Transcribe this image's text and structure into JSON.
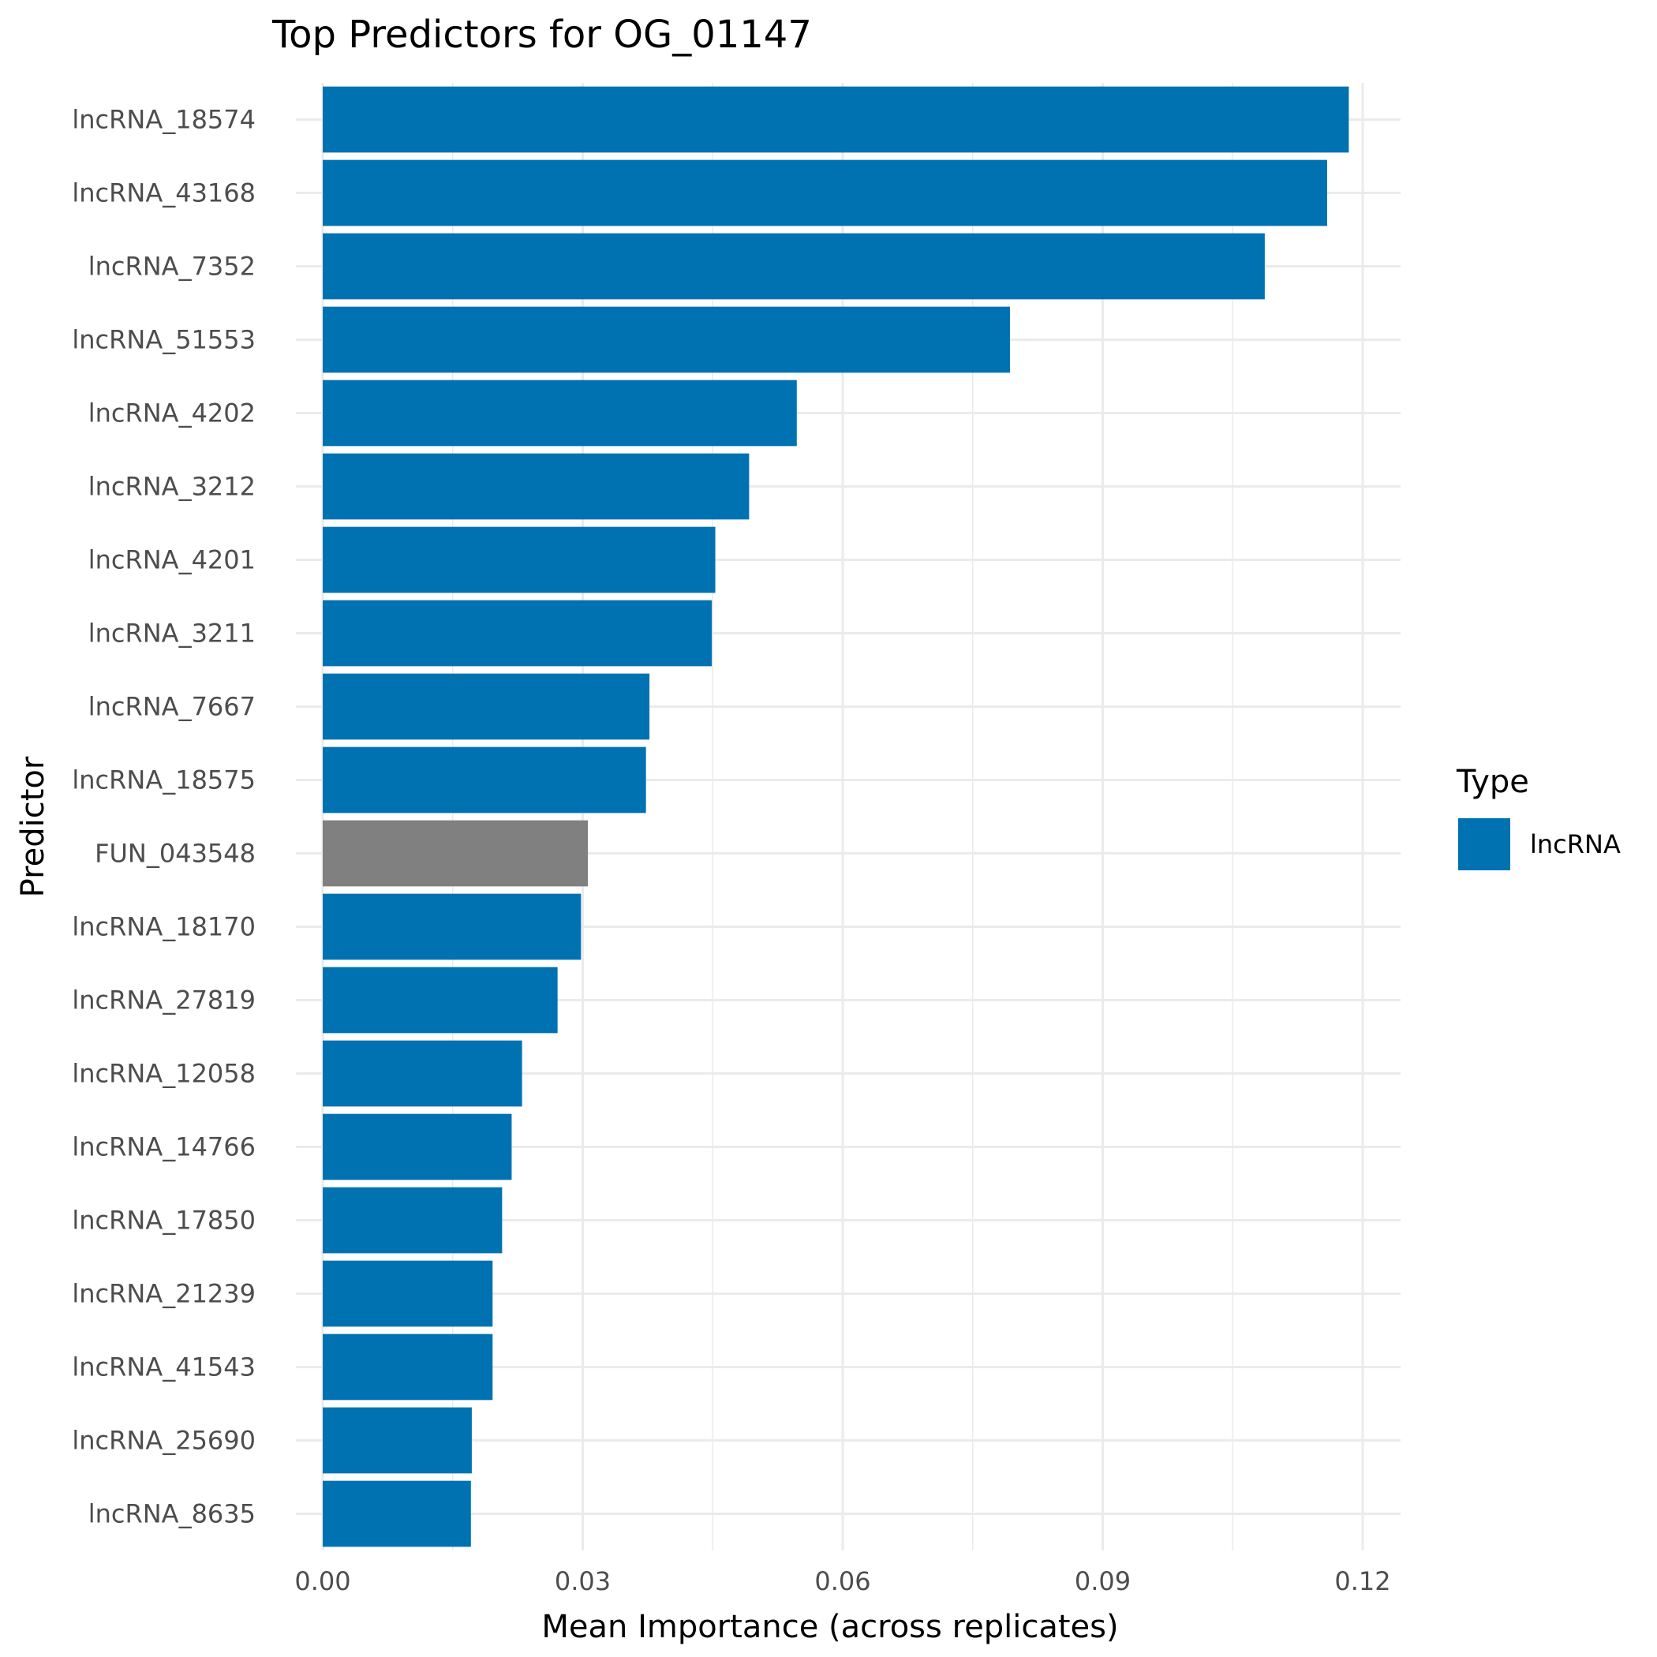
{
  "chart_data": {
    "type": "bar",
    "orientation": "horizontal",
    "title": "Top Predictors for OG_01147",
    "xlabel": "Mean Importance (across replicates)",
    "ylabel": "Predictor",
    "xlim": [
      0,
      0.124
    ],
    "x_ticks": [
      "0.00",
      "0.03",
      "0.06",
      "0.09",
      "0.12"
    ],
    "x_tick_values": [
      0,
      0.03,
      0.06,
      0.09,
      0.12
    ],
    "x_minor_values": [
      0.015,
      0.045,
      0.075,
      0.105
    ],
    "grid": true,
    "legend": {
      "title": "Type",
      "placement": "right",
      "entries": [
        {
          "label": "lncRNA",
          "color": "#0072B2"
        }
      ]
    },
    "colors": {
      "lncRNA": "#0072B2",
      "other": "#808080"
    },
    "categories": [
      "lncRNA_18574",
      "lncRNA_43168",
      "lncRNA_7352",
      "lncRNA_51553",
      "lncRNA_4202",
      "lncRNA_3212",
      "lncRNA_4201",
      "lncRNA_3211",
      "lncRNA_7667",
      "lncRNA_18575",
      "FUN_043548",
      "lncRNA_18170",
      "lncRNA_27819",
      "lncRNA_12058",
      "lncRNA_14766",
      "lncRNA_17850",
      "lncRNA_21239",
      "lncRNA_41543",
      "lncRNA_25690",
      "lncRNA_8635"
    ],
    "values": [
      0.1184,
      0.1159,
      0.1087,
      0.0793,
      0.0547,
      0.0492,
      0.0453,
      0.0449,
      0.0377,
      0.0373,
      0.0306,
      0.0298,
      0.0271,
      0.023,
      0.0218,
      0.0207,
      0.0196,
      0.0196,
      0.0172,
      0.0171
    ],
    "types": [
      "lncRNA",
      "lncRNA",
      "lncRNA",
      "lncRNA",
      "lncRNA",
      "lncRNA",
      "lncRNA",
      "lncRNA",
      "lncRNA",
      "lncRNA",
      "other",
      "lncRNA",
      "lncRNA",
      "lncRNA",
      "lncRNA",
      "lncRNA",
      "lncRNA",
      "lncRNA",
      "lncRNA",
      "lncRNA"
    ]
  }
}
